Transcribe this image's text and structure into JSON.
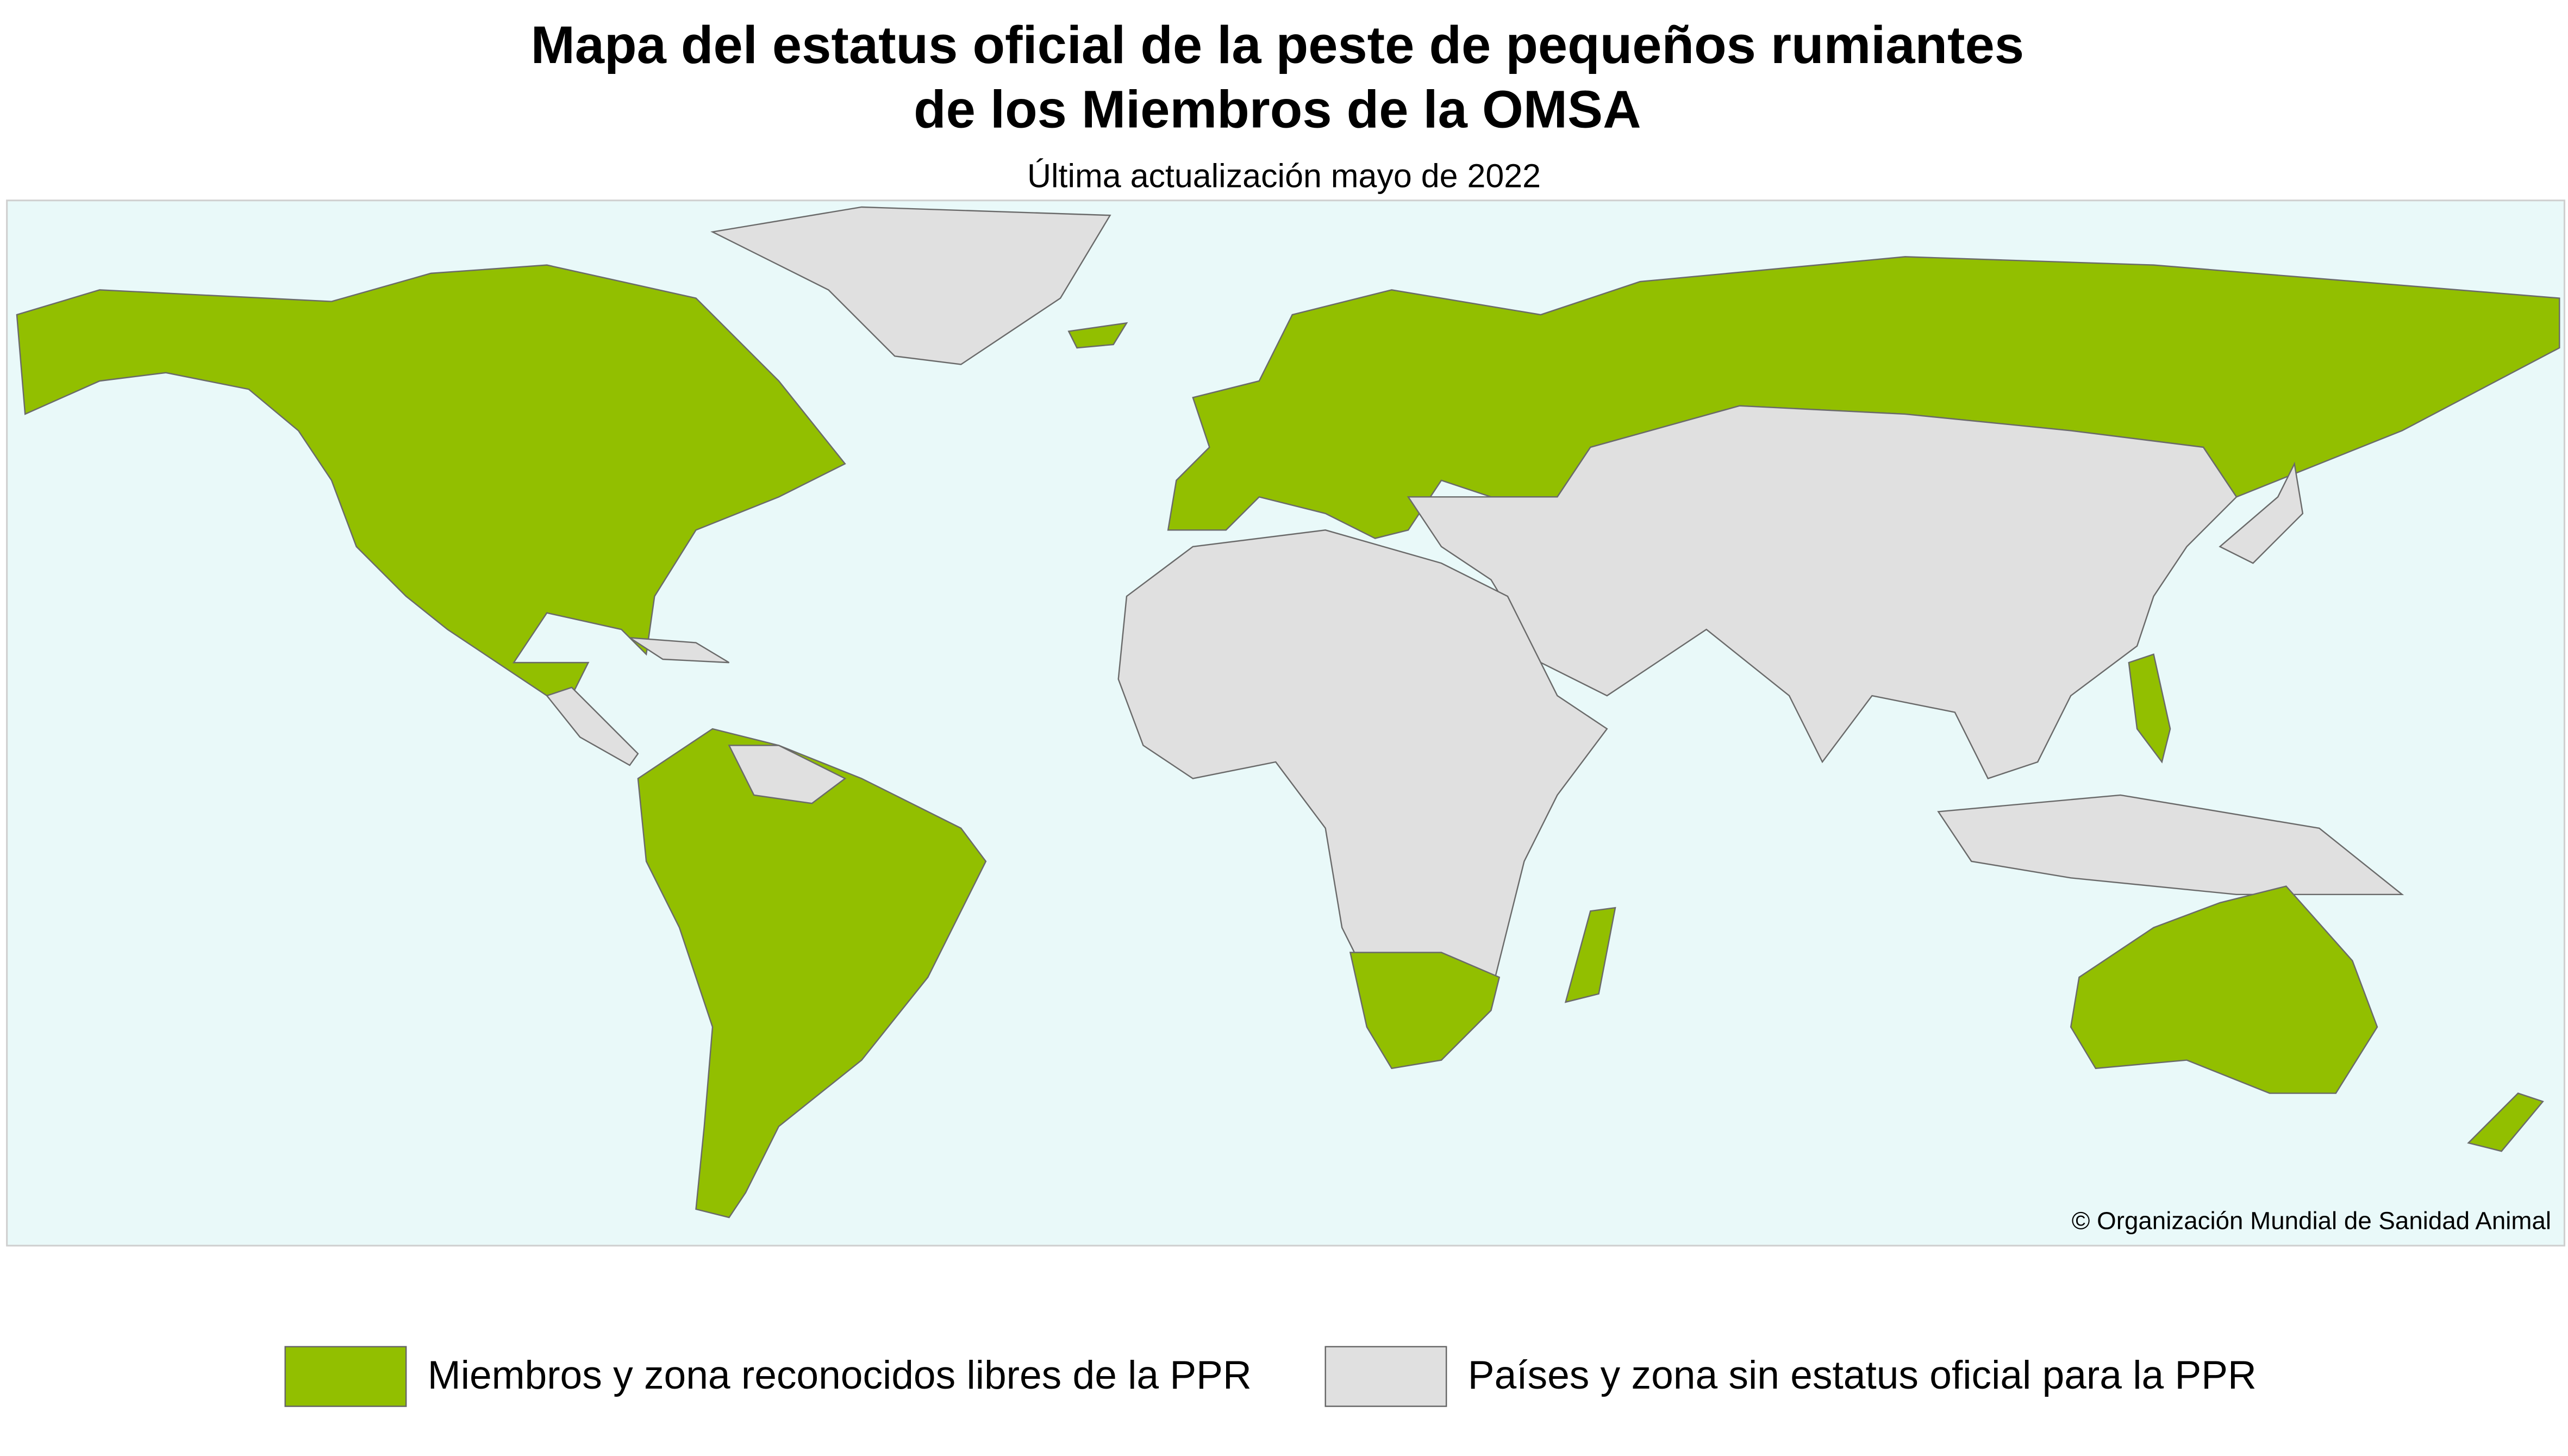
{
  "header": {
    "title_lines": [
      "Mapa del estatus oficial de la peste de pequeños rumiantes",
      "de los Miembros de la OMSA"
    ],
    "subtitle": "Última actualización mayo de 2022"
  },
  "map": {
    "copyright": "© Organización Mundial de Sanidad Animal"
  },
  "legend": {
    "items": [
      {
        "label": "Miembros y zona reconocidos libres de la PPR",
        "color": "#92bf00"
      },
      {
        "label": "Países y zona sin estatus oficial para la PPR",
        "color": "#e0e0e0"
      }
    ]
  }
}
